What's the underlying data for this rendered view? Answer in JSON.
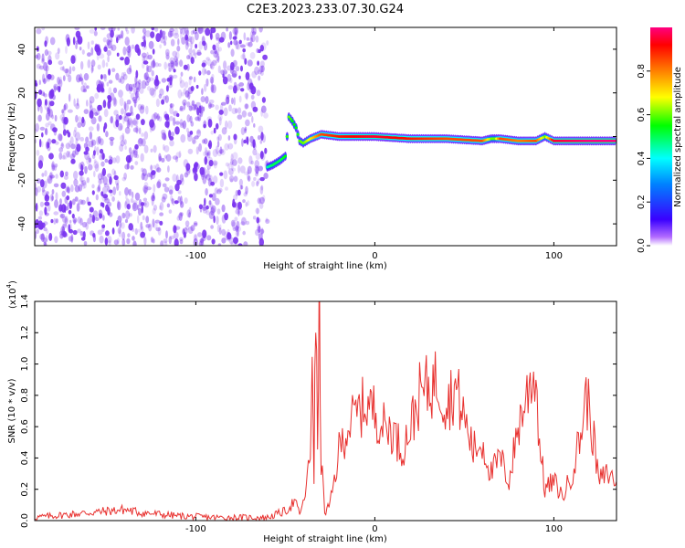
{
  "title": "C2E3.2023.233.07.30.G24",
  "colors": {
    "snr_line": "#e8312f",
    "dot_purple": "#7a33f0",
    "axis": "#000000",
    "background": "#ffffff"
  },
  "chart_data": [
    {
      "type": "heatmap",
      "title": "C2E3.2023.233.07.30.G24",
      "xlabel": "Height of straight line (km)",
      "ylabel": "Frequency (Hz)",
      "xlim": [
        -190,
        135
      ],
      "ylim": [
        -50,
        50
      ],
      "xticks": [
        -100,
        0,
        100
      ],
      "yticks": [
        -40,
        -20,
        0,
        20,
        40
      ],
      "colorbar": {
        "label": "Normalized spectral amplitude",
        "range": [
          0,
          1
        ],
        "ticks": [
          "0.0",
          "0.2",
          "0.4",
          "0.6",
          "0.8"
        ],
        "tick_values": [
          0.0,
          0.2,
          0.4,
          0.6,
          0.8
        ]
      },
      "noise_region_x": [
        -190,
        -60
      ],
      "ridge": {
        "x": [
          -60,
          -57,
          -53,
          -50,
          -48,
          -46,
          -44,
          -42,
          -40,
          -36,
          -30,
          -20,
          0,
          20,
          40,
          60,
          65,
          67,
          70,
          80,
          90,
          95,
          100,
          120,
          135
        ],
        "y": [
          -14,
          -13,
          -11,
          -9,
          9,
          7,
          4,
          -2,
          -3,
          -1,
          1,
          0,
          0,
          -1,
          -1,
          -2,
          -1,
          -1,
          -1,
          -2,
          -2,
          0,
          -2,
          -2,
          -2
        ],
        "level": [
          0.45,
          0.5,
          0.5,
          0.55,
          0.6,
          0.55,
          0.55,
          0.6,
          0.6,
          0.7,
          0.85,
          0.9,
          0.95,
          0.9,
          0.85,
          0.85,
          0.6,
          0.6,
          0.85,
          0.8,
          0.85,
          0.6,
          0.95,
          1.0,
          1.0
        ]
      }
    },
    {
      "type": "line",
      "title": "",
      "xlabel": "Height of straight line (km)",
      "ylabel": "SNR (10 * v/v)",
      "y_multiplier": "(x10",
      "y_multiplier_exp": "4",
      "y_multiplier_close": ")",
      "xlim": [
        -190,
        135
      ],
      "ylim": [
        0,
        1.4
      ],
      "xticks": [
        -100,
        0,
        100
      ],
      "yticks": [
        "0.0",
        "0.2",
        "0.4",
        "0.6",
        "0.8",
        "1.0",
        "1.2",
        "1.4"
      ],
      "ytick_values": [
        0.0,
        0.2,
        0.4,
        0.6,
        0.8,
        1.0,
        1.2,
        1.4
      ],
      "series": [
        {
          "x": [
            -190,
            -170,
            -150,
            -140,
            -130,
            -110,
            -90,
            -70,
            -60,
            -50,
            -45,
            -42,
            -40,
            -36,
            -35,
            -34,
            -33,
            -32,
            -31,
            -30,
            -28,
            -25,
            -22,
            -20,
            -15,
            -10,
            -5,
            0,
            5,
            10,
            15,
            20,
            25,
            30,
            35,
            40,
            45,
            50,
            55,
            60,
            65,
            70,
            75,
            80,
            85,
            88,
            90,
            92,
            95,
            100,
            105,
            110,
            115,
            118,
            120,
            123,
            125,
            130,
            135
          ],
          "y": [
            0.02,
            0.04,
            0.06,
            0.07,
            0.05,
            0.03,
            0.02,
            0.02,
            0.02,
            0.06,
            0.12,
            0.05,
            0.1,
            0.4,
            1.15,
            0.3,
            1.3,
            0.5,
            1.38,
            0.4,
            0.05,
            0.1,
            0.3,
            0.45,
            0.6,
            0.68,
            0.75,
            0.7,
            0.6,
            0.58,
            0.45,
            0.6,
            0.8,
            0.85,
            0.9,
            0.75,
            0.85,
            0.65,
            0.45,
            0.5,
            0.3,
            0.4,
            0.25,
            0.6,
            0.8,
            0.95,
            0.9,
            0.5,
            0.2,
            0.25,
            0.15,
            0.3,
            0.55,
            0.8,
            0.7,
            0.45,
            0.25,
            0.3,
            0.25
          ]
        }
      ]
    }
  ]
}
